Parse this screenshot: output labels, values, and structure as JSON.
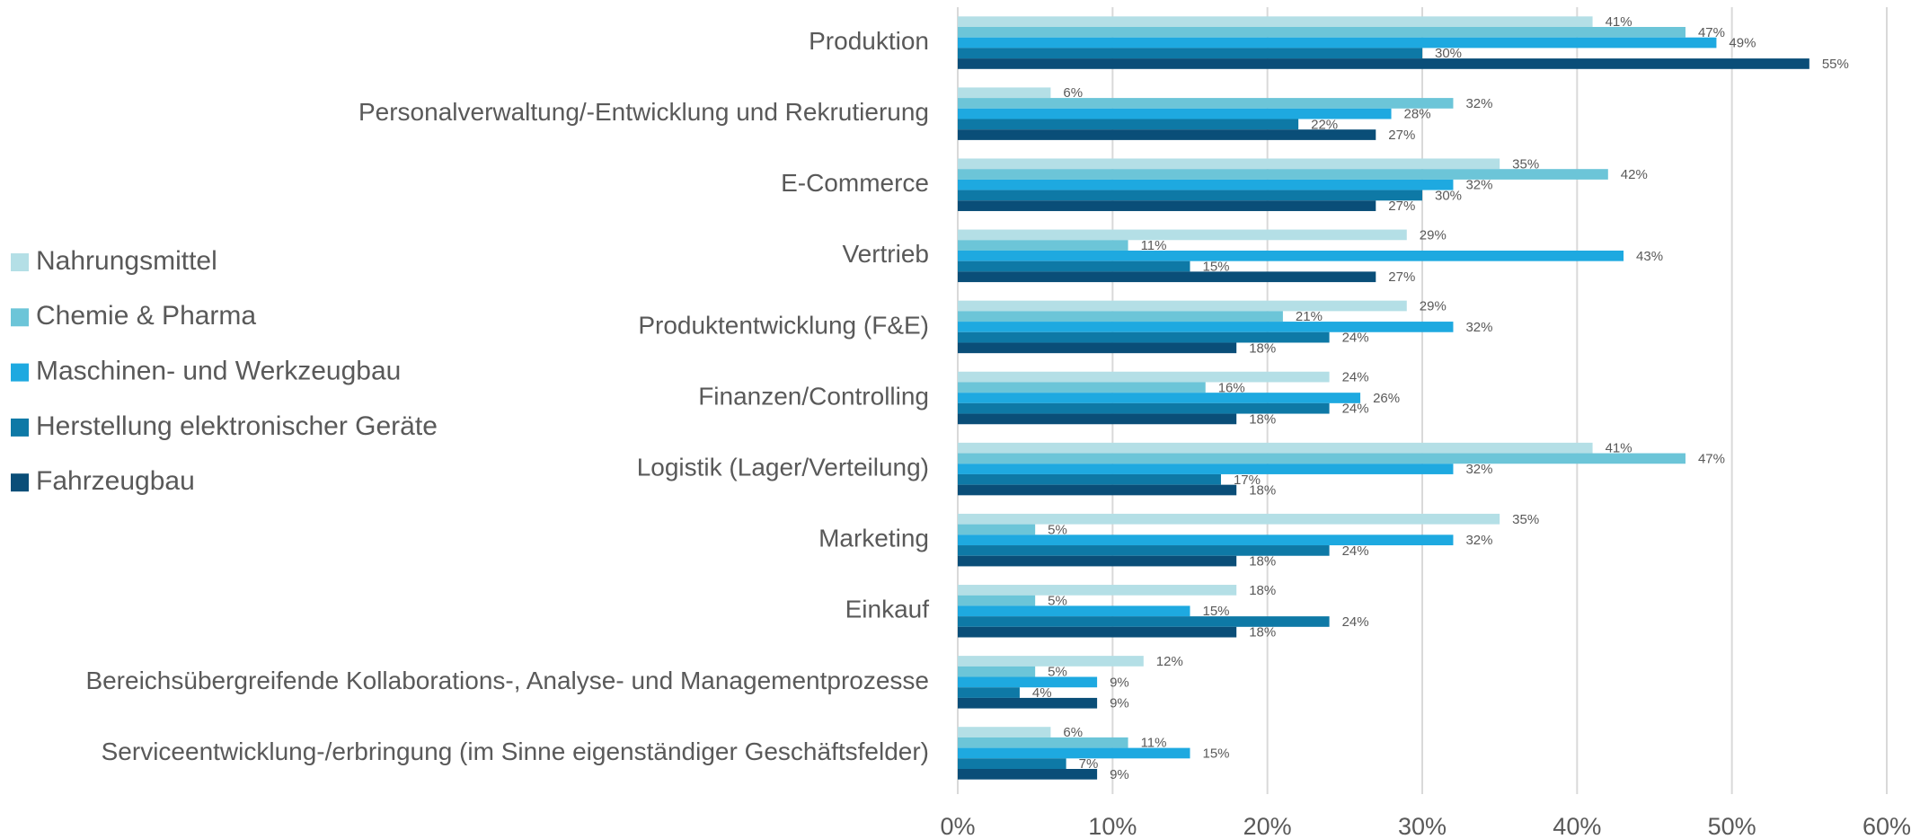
{
  "chart_data": {
    "type": "barh",
    "categories": [
      "Produktion",
      "Personalverwaltung/-Entwicklung und Rekrutierung",
      "E-Commerce",
      "Vertrieb",
      "Produktentwicklung (F&E)",
      "Finanzen/Controlling",
      "Logistik (Lager/Verteilung)",
      "Marketing",
      "Einkauf",
      "Bereichsübergreifende Kollaborations-, Analyse- und Managementprozesse",
      "Serviceentwicklung-/erbringung (im Sinne eigenständiger Geschäftsfelder)"
    ],
    "series": [
      {
        "name": "Nahrungsmittel",
        "color": "#b4dfe6",
        "values": [
          41,
          6,
          35,
          29,
          29,
          24,
          41,
          35,
          18,
          12,
          6
        ],
        "value_labels": [
          "41%",
          "6%",
          "35%",
          "29%",
          "29%",
          "24%",
          "41%",
          "35%",
          "18%",
          "12%",
          "6%"
        ]
      },
      {
        "name": "Chemie & Pharma",
        "color": "#6cc5d8",
        "values": [
          47,
          32,
          42,
          11,
          21,
          16,
          47,
          5,
          5,
          5,
          11
        ],
        "value_labels": [
          "47%",
          "32%",
          "42%",
          "11%",
          "21%",
          "16%",
          "47%",
          "5%",
          "5%",
          "5%",
          "11%"
        ]
      },
      {
        "name": "Maschinen- und Werkzeugbau",
        "color": "#1ea9e0",
        "values": [
          49,
          28,
          32,
          43,
          32,
          26,
          32,
          32,
          15,
          9,
          15
        ],
        "value_labels": [
          "49%",
          "28%",
          "32%",
          "43%",
          "32%",
          "26%",
          "32%",
          "32%",
          "15%",
          "9%",
          "15%"
        ]
      },
      {
        "name": "Herstellung elektronischer Geräte",
        "color": "#0e79a6",
        "values": [
          30,
          22,
          30,
          15,
          24,
          24,
          17,
          24,
          24,
          4,
          7
        ],
        "value_labels": [
          "30%",
          "22%",
          "30%",
          "15%",
          "24%",
          "24%",
          "17%",
          "24%",
          "24%",
          "4%",
          "7%"
        ]
      },
      {
        "name": "Fahrzeugbau",
        "color": "#0a4e78",
        "values": [
          55,
          27,
          27,
          27,
          18,
          18,
          18,
          18,
          18,
          9,
          9
        ],
        "value_labels": [
          "55%",
          "27%",
          "27%",
          "27%",
          "18%",
          "18%",
          "18%",
          "18%",
          "18%",
          "9%",
          "9%"
        ]
      }
    ],
    "xlim": [
      0,
      60
    ],
    "xticks": [
      {
        "value": 0,
        "label": "0%"
      },
      {
        "value": 10,
        "label": "10%"
      },
      {
        "value": 20,
        "label": "20%"
      },
      {
        "value": 30,
        "label": "30%"
      },
      {
        "value": 40,
        "label": "40%"
      },
      {
        "value": 50,
        "label": "50%"
      },
      {
        "value": 60,
        "label": "60%"
      }
    ],
    "grid": true,
    "legend": "left"
  }
}
